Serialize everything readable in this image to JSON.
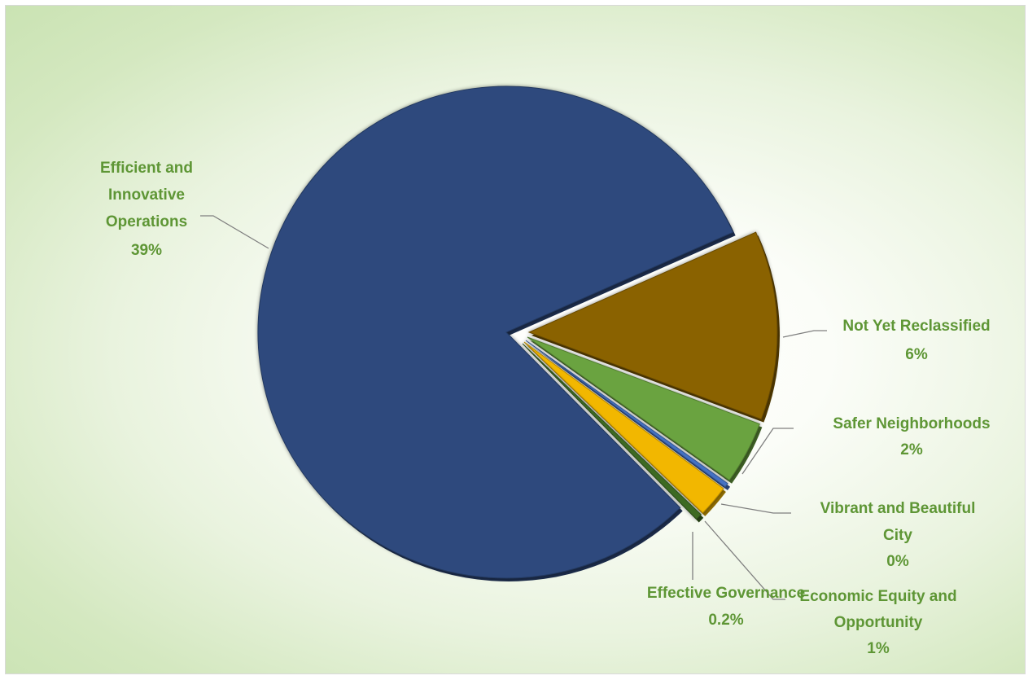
{
  "chart_data": {
    "type": "pie",
    "title": "",
    "legend": "none",
    "colors": {
      "navy": "#2e4a7d",
      "brown": "#8a6204",
      "green": "#6aa33f",
      "blue": "#4472c4",
      "gold": "#f2b705",
      "darkgreen": "#3d6b22",
      "label": "#5e9635"
    },
    "slices": [
      {
        "name": "Efficient and Innovative Operations",
        "value": 39,
        "label": "39%",
        "color_key": "navy"
      },
      {
        "name": "Not Yet Reclassified",
        "value": 6,
        "label": "6%",
        "color_key": "brown"
      },
      {
        "name": "Safer Neighborhoods",
        "value": 2,
        "label": "2%",
        "color_key": "green"
      },
      {
        "name": "Vibrant and Beautiful City",
        "value": 0,
        "label": "0%",
        "color_key": "blue"
      },
      {
        "name": "Economic Equity and Opportunity",
        "value": 1,
        "label": "1%",
        "color_key": "gold"
      },
      {
        "name": "Effective Governance",
        "value": 0.2,
        "label": "0.2%",
        "color_key": "darkgreen"
      }
    ]
  }
}
